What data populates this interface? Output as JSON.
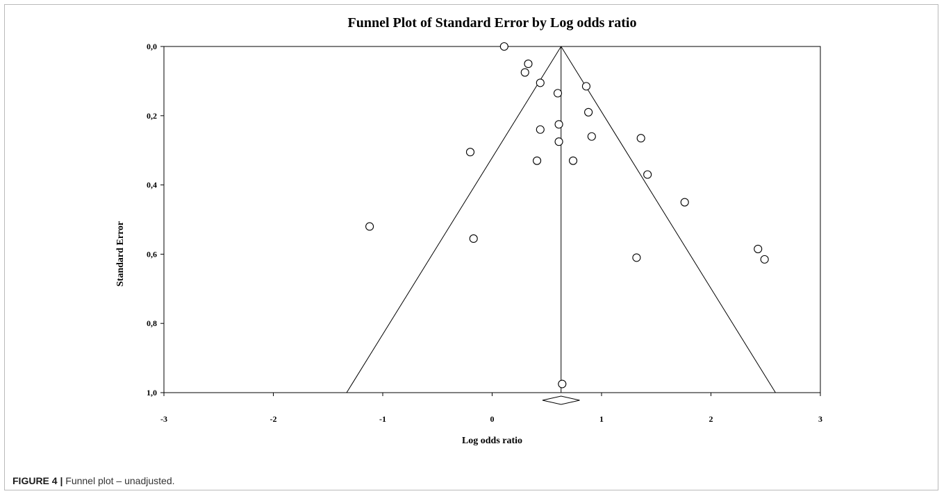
{
  "figure": {
    "label": "FIGURE 4 |",
    "caption": "Funnel plot – unadjusted."
  },
  "chart_data": {
    "type": "scatter",
    "title": "Funnel Plot of Standard Error by Log odds ratio",
    "xlabel": "Log odds ratio",
    "ylabel": "Standard Error",
    "xlim": [
      -3,
      3
    ],
    "ylim": [
      0,
      1
    ],
    "y_inverted": true,
    "x_ticks": [
      -3,
      -2,
      -1,
      0,
      1,
      2,
      3
    ],
    "x_tick_labels": [
      "-3",
      "-2",
      "-1",
      "0",
      "1",
      "2",
      "3"
    ],
    "y_ticks": [
      0,
      0.2,
      0.4,
      0.6,
      0.8,
      1.0
    ],
    "y_tick_labels": [
      "0,0",
      "0,2",
      "0,4",
      "0,6",
      "0,8",
      "1,0"
    ],
    "grid": false,
    "pooled_estimate": 0.63,
    "funnel_z": 1.96,
    "diamond": {
      "center": 0.63,
      "lower": 0.46,
      "upper": 0.8
    },
    "points": [
      {
        "x": 0.11,
        "y": 0.0
      },
      {
        "x": 0.33,
        "y": 0.05
      },
      {
        "x": 0.3,
        "y": 0.075
      },
      {
        "x": 0.44,
        "y": 0.105
      },
      {
        "x": 0.86,
        "y": 0.115
      },
      {
        "x": 0.6,
        "y": 0.135
      },
      {
        "x": 0.88,
        "y": 0.19
      },
      {
        "x": 0.61,
        "y": 0.225
      },
      {
        "x": 0.44,
        "y": 0.24
      },
      {
        "x": 0.91,
        "y": 0.26
      },
      {
        "x": 1.36,
        "y": 0.265
      },
      {
        "x": 0.61,
        "y": 0.275
      },
      {
        "x": -0.2,
        "y": 0.305
      },
      {
        "x": 0.41,
        "y": 0.33
      },
      {
        "x": 0.74,
        "y": 0.33
      },
      {
        "x": 1.42,
        "y": 0.37
      },
      {
        "x": 1.76,
        "y": 0.45
      },
      {
        "x": -1.12,
        "y": 0.52
      },
      {
        "x": -0.17,
        "y": 0.555
      },
      {
        "x": 2.43,
        "y": 0.585
      },
      {
        "x": 1.32,
        "y": 0.61
      },
      {
        "x": 2.49,
        "y": 0.615
      },
      {
        "x": 0.64,
        "y": 0.975
      }
    ]
  }
}
